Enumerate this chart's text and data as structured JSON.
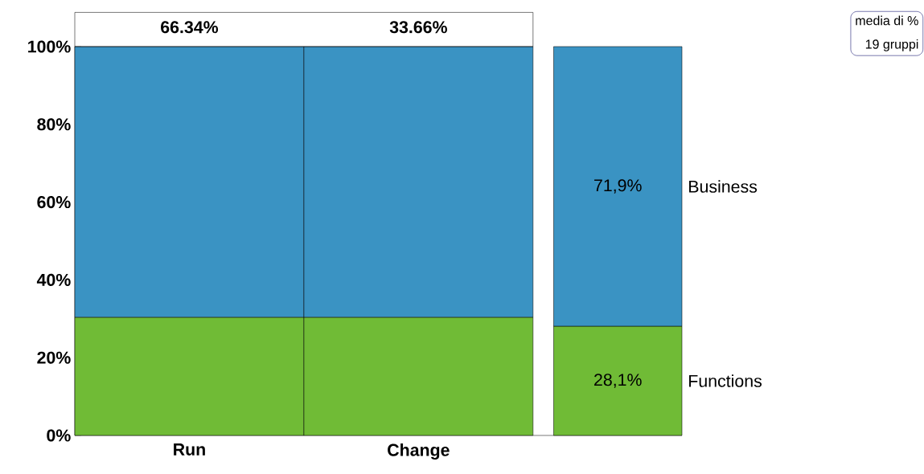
{
  "chart_data": {
    "type": "bar",
    "stacked": true,
    "categories": [
      "Run",
      "Change",
      null
    ],
    "series": [
      {
        "name": "Functions",
        "color": "#70bb36",
        "values": [
          30.4,
          30.4,
          28.1
        ],
        "value_labels": [
          null,
          null,
          "28,1%"
        ]
      },
      {
        "name": "Business",
        "color": "#3a93c3",
        "values": [
          69.6,
          69.6,
          71.9
        ],
        "value_labels": [
          null,
          null,
          "71,9%"
        ]
      }
    ],
    "ylim": [
      0,
      100
    ],
    "yticks": [
      {
        "value": 0,
        "label": "0%"
      },
      {
        "value": 5,
        "label": null
      },
      {
        "value": 10,
        "label": null
      },
      {
        "value": 15,
        "label": null
      },
      {
        "value": 20,
        "label": "20%"
      },
      {
        "value": 25,
        "label": null
      },
      {
        "value": 30,
        "label": null
      },
      {
        "value": 35,
        "label": null
      },
      {
        "value": 40,
        "label": "40%"
      },
      {
        "value": 45,
        "label": null
      },
      {
        "value": 50,
        "label": null
      },
      {
        "value": 55,
        "label": null
      },
      {
        "value": 60,
        "label": "60%"
      },
      {
        "value": 65,
        "label": null
      },
      {
        "value": 70,
        "label": null
      },
      {
        "value": 75,
        "label": null
      },
      {
        "value": 80,
        "label": "80%"
      },
      {
        "value": 85,
        "label": null
      },
      {
        "value": 90,
        "label": null
      },
      {
        "value": 95,
        "label": null
      },
      {
        "value": 100,
        "label": "100%"
      }
    ],
    "annotations": [
      "66.34%",
      "33.66%",
      "media di %",
      "19 gruppi"
    ]
  }
}
